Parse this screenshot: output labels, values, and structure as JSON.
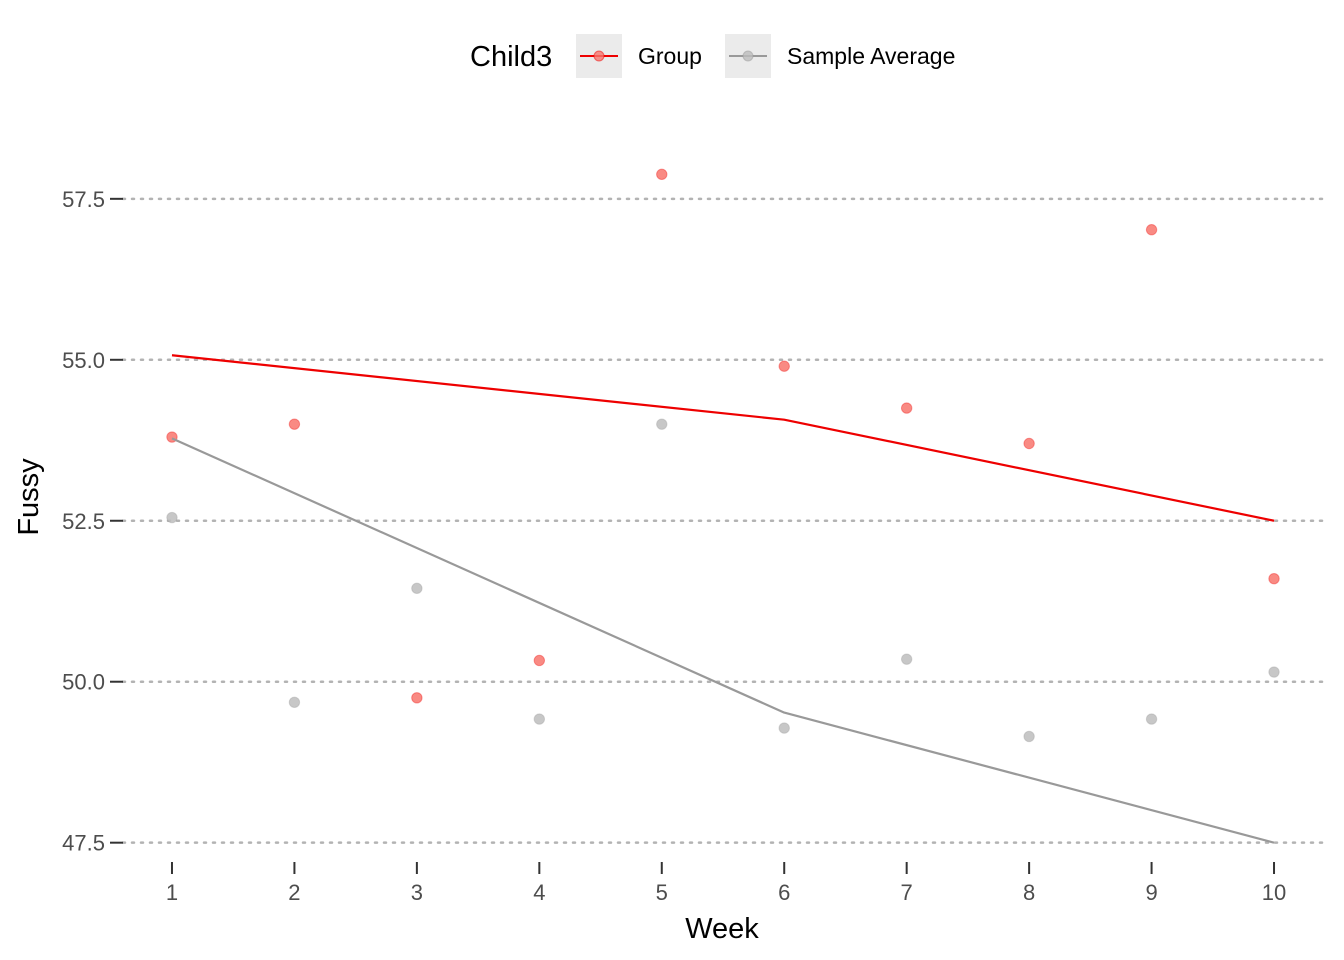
{
  "chart_data": {
    "type": "line",
    "xlabel": "Week",
    "ylabel": "Fussy",
    "x": [
      1,
      2,
      3,
      4,
      5,
      6,
      7,
      8,
      9,
      10
    ],
    "x_tick_labels": [
      "1",
      "2",
      "3",
      "4",
      "5",
      "6",
      "7",
      "8",
      "9",
      "10"
    ],
    "y_ticks": [
      47.5,
      50.0,
      52.5,
      55.0,
      57.5
    ],
    "y_tick_labels": [
      "47.5",
      "50.0",
      "52.5",
      "55.0",
      "57.5"
    ],
    "xlim": [
      0.6,
      10.4
    ],
    "ylim": [
      47.2,
      58.6
    ],
    "grid": "horizontal dotted",
    "legend": {
      "title": "Child3",
      "position": "top",
      "entries": [
        "Group",
        "Sample Average"
      ]
    },
    "series": [
      {
        "name": "Group",
        "color": "#ee0000",
        "point_color": "#f8766d",
        "points": [
          53.8,
          54.0,
          49.75,
          50.33,
          57.88,
          54.9,
          54.25,
          53.7,
          57.02,
          51.6
        ],
        "line_x": [
          1,
          6,
          10
        ],
        "line_y": [
          55.07,
          54.07,
          52.5
        ]
      },
      {
        "name": "Sample Average",
        "color": "#999999",
        "point_color": "#bdbdbd",
        "points": [
          52.55,
          49.68,
          51.45,
          49.42,
          54.0,
          49.28,
          50.35,
          49.15,
          49.42,
          50.15
        ],
        "line_x": [
          1,
          6,
          10
        ],
        "line_y": [
          53.78,
          49.52,
          47.5
        ]
      }
    ]
  }
}
